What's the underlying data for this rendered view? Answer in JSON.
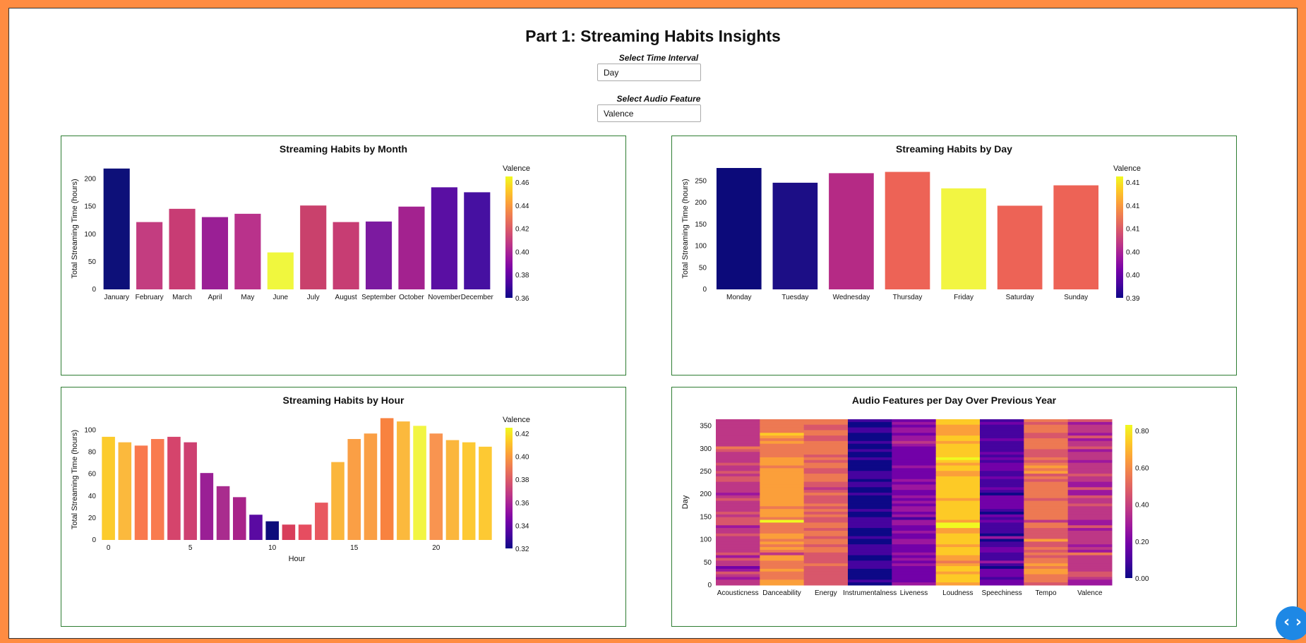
{
  "page": {
    "title": "Part 1: Streaming Habits Insights",
    "time_label": "Select Time Interval",
    "time_value": "Day",
    "feature_label": "Select Audio Feature",
    "feature_value": "Valence",
    "nav_glyph": "‹ ›",
    "nav_icon": "code-arrows-icon"
  },
  "colorscale": [
    "#0d0887",
    "#46039f",
    "#7201a8",
    "#9c179e",
    "#bd3786",
    "#d8576b",
    "#ed7953",
    "#fb9f3a",
    "#fdca26",
    "#f0f921"
  ],
  "chart_data": [
    {
      "type": "bar",
      "title": "Streaming Habits by Month",
      "ylabel": "Total Streaming Time (hours)",
      "xlabel": "",
      "ylim": [
        0,
        220
      ],
      "yticks": [
        0,
        50,
        100,
        150,
        200
      ],
      "categories": [
        "January",
        "February",
        "March",
        "April",
        "May",
        "June",
        "July",
        "August",
        "September",
        "October",
        "November",
        "December"
      ],
      "values": [
        219,
        122,
        146,
        131,
        137,
        67,
        152,
        122,
        123,
        150,
        185,
        176
      ],
      "colors": [
        "#0d1079",
        "#c33d80",
        "#c83c74",
        "#9a1f95",
        "#b9328b",
        "#f0f73e",
        "#c9416c",
        "#c73d73",
        "#7c1aa0",
        "#a3228f",
        "#5a0fa3",
        "#4610a1"
      ],
      "colorbar": {
        "title": "Valence",
        "labels": [
          "0.46",
          "0.44",
          "0.42",
          "0.40",
          "0.38",
          "0.36"
        ]
      }
    },
    {
      "type": "bar",
      "title": "Streaming Habits by Day",
      "ylabel": "Total Streaming Time (hours)",
      "xlabel": "",
      "ylim": [
        0,
        280
      ],
      "yticks": [
        0,
        50,
        100,
        150,
        200,
        250
      ],
      "categories": [
        "Monday",
        "Tuesday",
        "Wednesday",
        "Thursday",
        "Friday",
        "Saturday",
        "Sunday"
      ],
      "values": [
        280,
        246,
        268,
        271,
        233,
        193,
        240
      ],
      "colors": [
        "#0c0a7a",
        "#1c0e86",
        "#b52a85",
        "#ed6356",
        "#f2f542",
        "#ed6356",
        "#ed6356"
      ],
      "colorbar": {
        "title": "Valence",
        "labels": [
          "0.41",
          "0.41",
          "0.41",
          "0.40",
          "0.40",
          "0.39"
        ]
      }
    },
    {
      "type": "bar",
      "title": "Streaming Habits by Hour",
      "ylabel": "Total Streaming Time (hours)",
      "xlabel": "Hour",
      "ylim": [
        0,
        110
      ],
      "yticks": [
        0,
        20,
        40,
        60,
        80,
        100
      ],
      "xticks": [
        0,
        5,
        10,
        15,
        20
      ],
      "categories": [
        0,
        1,
        2,
        3,
        4,
        5,
        6,
        7,
        8,
        9,
        10,
        11,
        12,
        13,
        14,
        15,
        16,
        17,
        18,
        19,
        20,
        21,
        22,
        23
      ],
      "values": [
        94,
        89,
        86,
        92,
        94,
        89,
        61,
        49,
        39,
        23,
        17,
        14,
        14,
        34,
        71,
        92,
        97,
        111,
        108,
        104,
        97,
        91,
        89,
        85
      ],
      "colors": [
        "#fccb2b",
        "#fbb93d",
        "#f9794e",
        "#f97b4f",
        "#d5446c",
        "#ce4071",
        "#9a1f95",
        "#a92c8e",
        "#a82389",
        "#5a0aa2",
        "#0d0c7b",
        "#d83e5b",
        "#e64d60",
        "#e85860",
        "#fbb63c",
        "#fa9f45",
        "#fa9f45",
        "#f8823f",
        "#fbb93d",
        "#f2f542",
        "#f99450",
        "#fbb63c",
        "#fdc933",
        "#fdc933"
      ],
      "colorbar": {
        "title": "Valence",
        "labels": [
          "0.42",
          "0.40",
          "0.38",
          "0.36",
          "0.34",
          "0.32"
        ]
      }
    },
    {
      "type": "heatmap",
      "title": "Audio Features per Day Over Previous Year",
      "ylabel": "Day",
      "xlabel": "",
      "ylim": [
        0,
        365
      ],
      "yticks": [
        0,
        50,
        100,
        150,
        200,
        250,
        300,
        350
      ],
      "categories": [
        "Acousticness",
        "Danceability",
        "Energy",
        "Instrumentalness",
        "Liveness",
        "Loudness",
        "Speechiness",
        "Tempo",
        "Valence"
      ],
      "typical_values": [
        0.42,
        0.66,
        0.55,
        0.04,
        0.24,
        0.78,
        0.12,
        0.58,
        0.4
      ],
      "colorbar": {
        "title": "",
        "labels": [
          "0.80",
          "0.60",
          "0.40",
          "0.20",
          "0.00"
        ]
      }
    }
  ]
}
